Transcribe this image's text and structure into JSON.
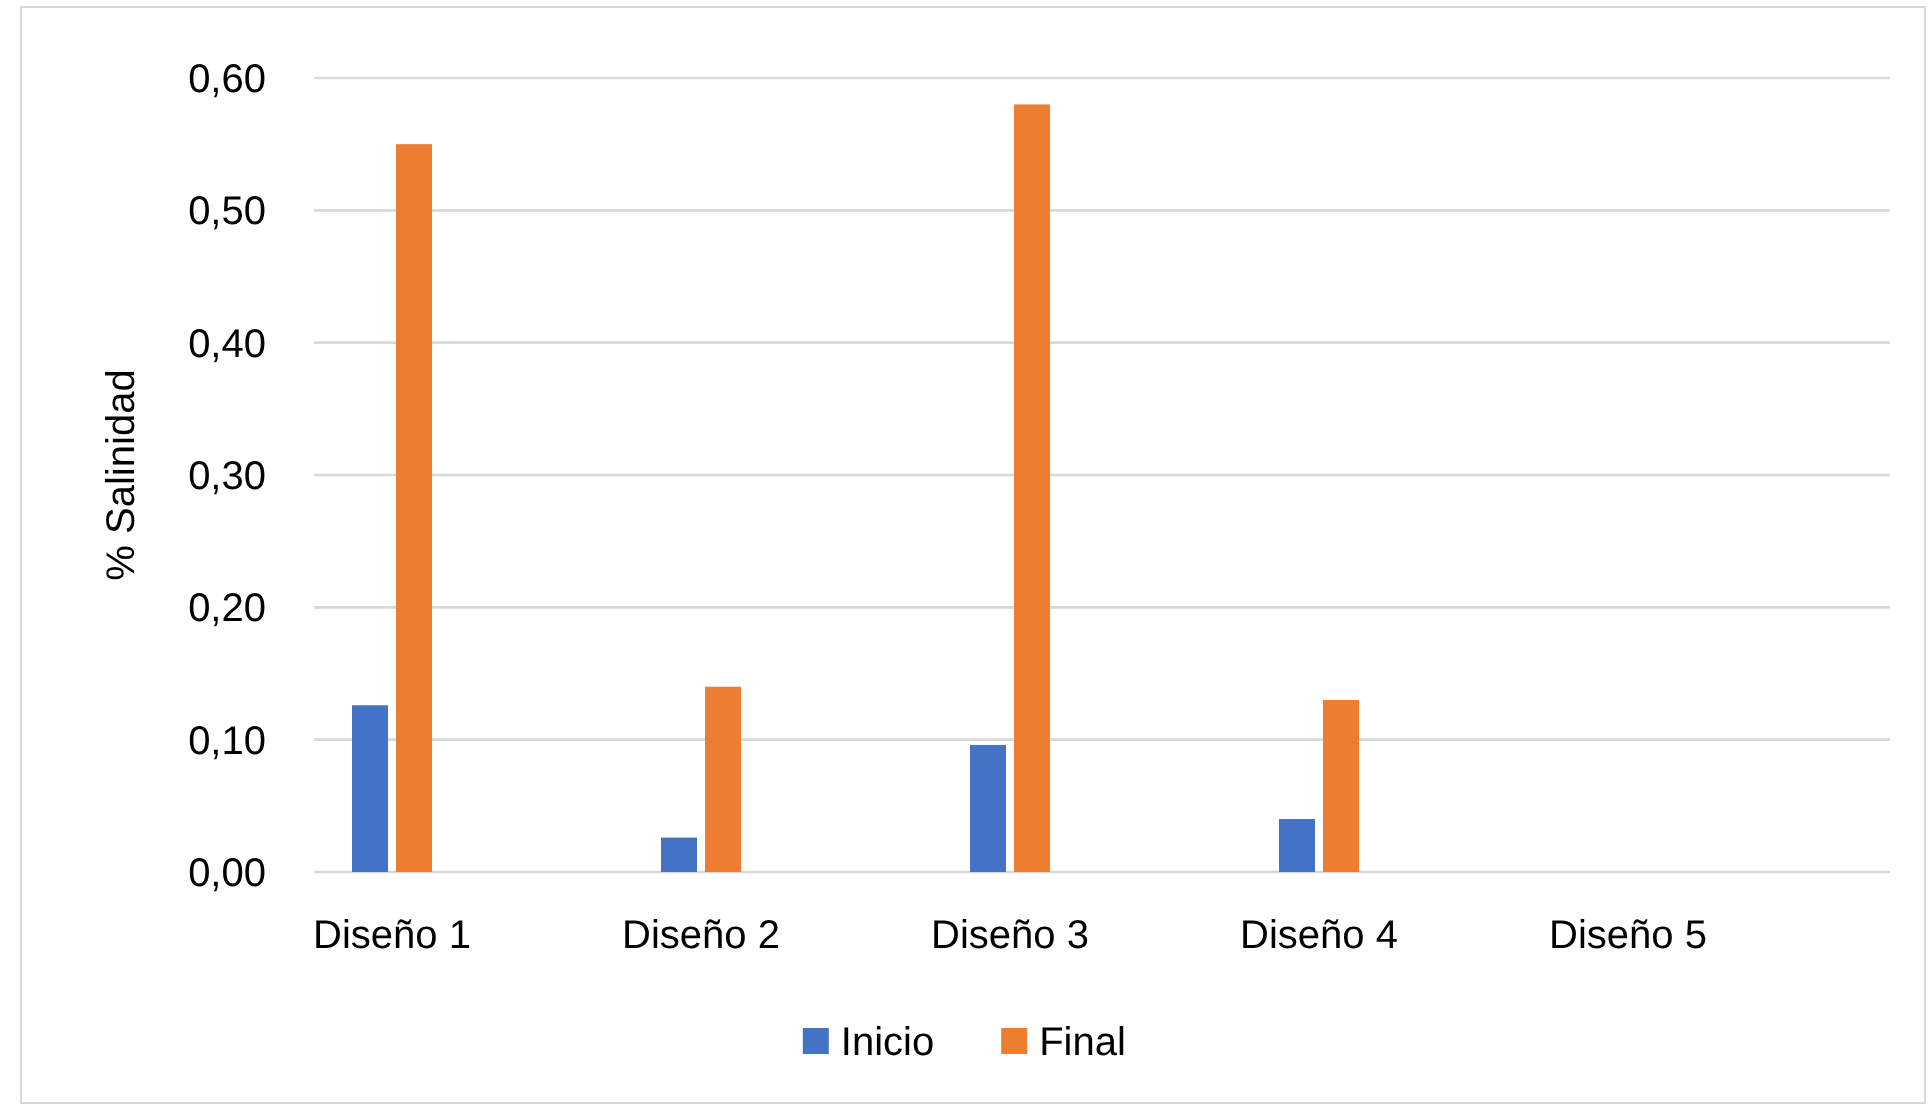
{
  "chart_data": {
    "type": "bar",
    "ylabel": "% Salinidad",
    "categories": [
      "Diseño 1",
      "Diseño 2",
      "Diseño 3",
      "Diseño 4",
      "Diseño 5"
    ],
    "series": [
      {
        "name": "Inicio",
        "color": "#4472c4",
        "values": [
          0.126,
          0.026,
          0.096,
          0.04,
          null
        ]
      },
      {
        "name": "Final",
        "color": "#ed7d31",
        "values": [
          0.55,
          0.14,
          0.58,
          0.13,
          null
        ]
      }
    ],
    "ylim": [
      0,
      0.6
    ],
    "yticks": [
      {
        "value": 0,
        "label": "0,00"
      },
      {
        "value": 0.1,
        "label": "0,10"
      },
      {
        "value": 0.2,
        "label": "0,20"
      },
      {
        "value": 0.3,
        "label": "0,30"
      },
      {
        "value": 0.4,
        "label": "0,40"
      },
      {
        "value": 0.5,
        "label": "0,50"
      },
      {
        "value": 0.6,
        "label": "0,60"
      }
    ],
    "grid": "y",
    "legend": "bottom"
  }
}
